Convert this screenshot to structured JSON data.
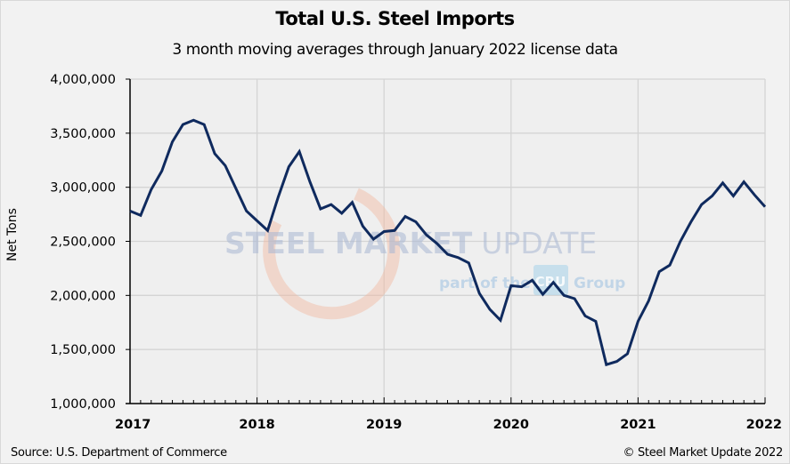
{
  "chart_data": {
    "type": "line",
    "title": "Total U.S. Steel Imports",
    "subtitle": "3 month moving averages through January 2022 license data",
    "xlabel": "",
    "ylabel": "Net Tons",
    "ylim": [
      1000000,
      4000000
    ],
    "yticks": [
      1000000,
      1500000,
      2000000,
      2500000,
      3000000,
      3500000,
      4000000
    ],
    "ytick_labels": [
      "1,000,000",
      "1,500,000",
      "2,000,000",
      "2,500,000",
      "3,000,000",
      "3,500,000",
      "4,000,000"
    ],
    "xlim": [
      "2017-01",
      "2022-01"
    ],
    "xtick_labels": [
      "2017",
      "2018",
      "2019",
      "2020",
      "2021",
      "2022"
    ],
    "grid": true,
    "legend": "none",
    "series": [
      {
        "name": "Total U.S. Steel Imports (3MMA)",
        "color": "#0f2a5e",
        "x": [
          "2017-01",
          "2017-02",
          "2017-03",
          "2017-04",
          "2017-05",
          "2017-06",
          "2017-07",
          "2017-08",
          "2017-09",
          "2017-10",
          "2017-11",
          "2017-12",
          "2018-01",
          "2018-02",
          "2018-03",
          "2018-04",
          "2018-05",
          "2018-06",
          "2018-07",
          "2018-08",
          "2018-09",
          "2018-10",
          "2018-11",
          "2018-12",
          "2019-01",
          "2019-02",
          "2019-03",
          "2019-04",
          "2019-05",
          "2019-06",
          "2019-07",
          "2019-08",
          "2019-09",
          "2019-10",
          "2019-11",
          "2019-12",
          "2020-01",
          "2020-02",
          "2020-03",
          "2020-04",
          "2020-05",
          "2020-06",
          "2020-07",
          "2020-08",
          "2020-09",
          "2020-10",
          "2020-11",
          "2020-12",
          "2021-01",
          "2021-02",
          "2021-03",
          "2021-04",
          "2021-05",
          "2021-06",
          "2021-07",
          "2021-08",
          "2021-09",
          "2021-10",
          "2021-11",
          "2021-12",
          "2022-01"
        ],
        "values": [
          2780000,
          2740000,
          2980000,
          3150000,
          3420000,
          3580000,
          3620000,
          3580000,
          3310000,
          3200000,
          2990000,
          2780000,
          2690000,
          2600000,
          2910000,
          3190000,
          3330000,
          3050000,
          2800000,
          2840000,
          2760000,
          2860000,
          2640000,
          2520000,
          2590000,
          2600000,
          2730000,
          2680000,
          2560000,
          2480000,
          2380000,
          2350000,
          2300000,
          2020000,
          1870000,
          1770000,
          2090000,
          2080000,
          2140000,
          2010000,
          2120000,
          2000000,
          1970000,
          1810000,
          1760000,
          1360000,
          1390000,
          1460000,
          1760000,
          1950000,
          2220000,
          2280000,
          2500000,
          2680000,
          2840000,
          2920000,
          3040000,
          2920000,
          3050000,
          2930000,
          2820000
        ]
      }
    ],
    "watermark": {
      "line1_bold": "STEEL MARKET",
      "line1_light": "UPDATE",
      "line2_left": "part of the",
      "line2_badge": "CRU",
      "line2_right": "Group"
    },
    "source": "Source: U.S. Department of Commerce",
    "copyright": "© Steel Market Update 2022"
  }
}
